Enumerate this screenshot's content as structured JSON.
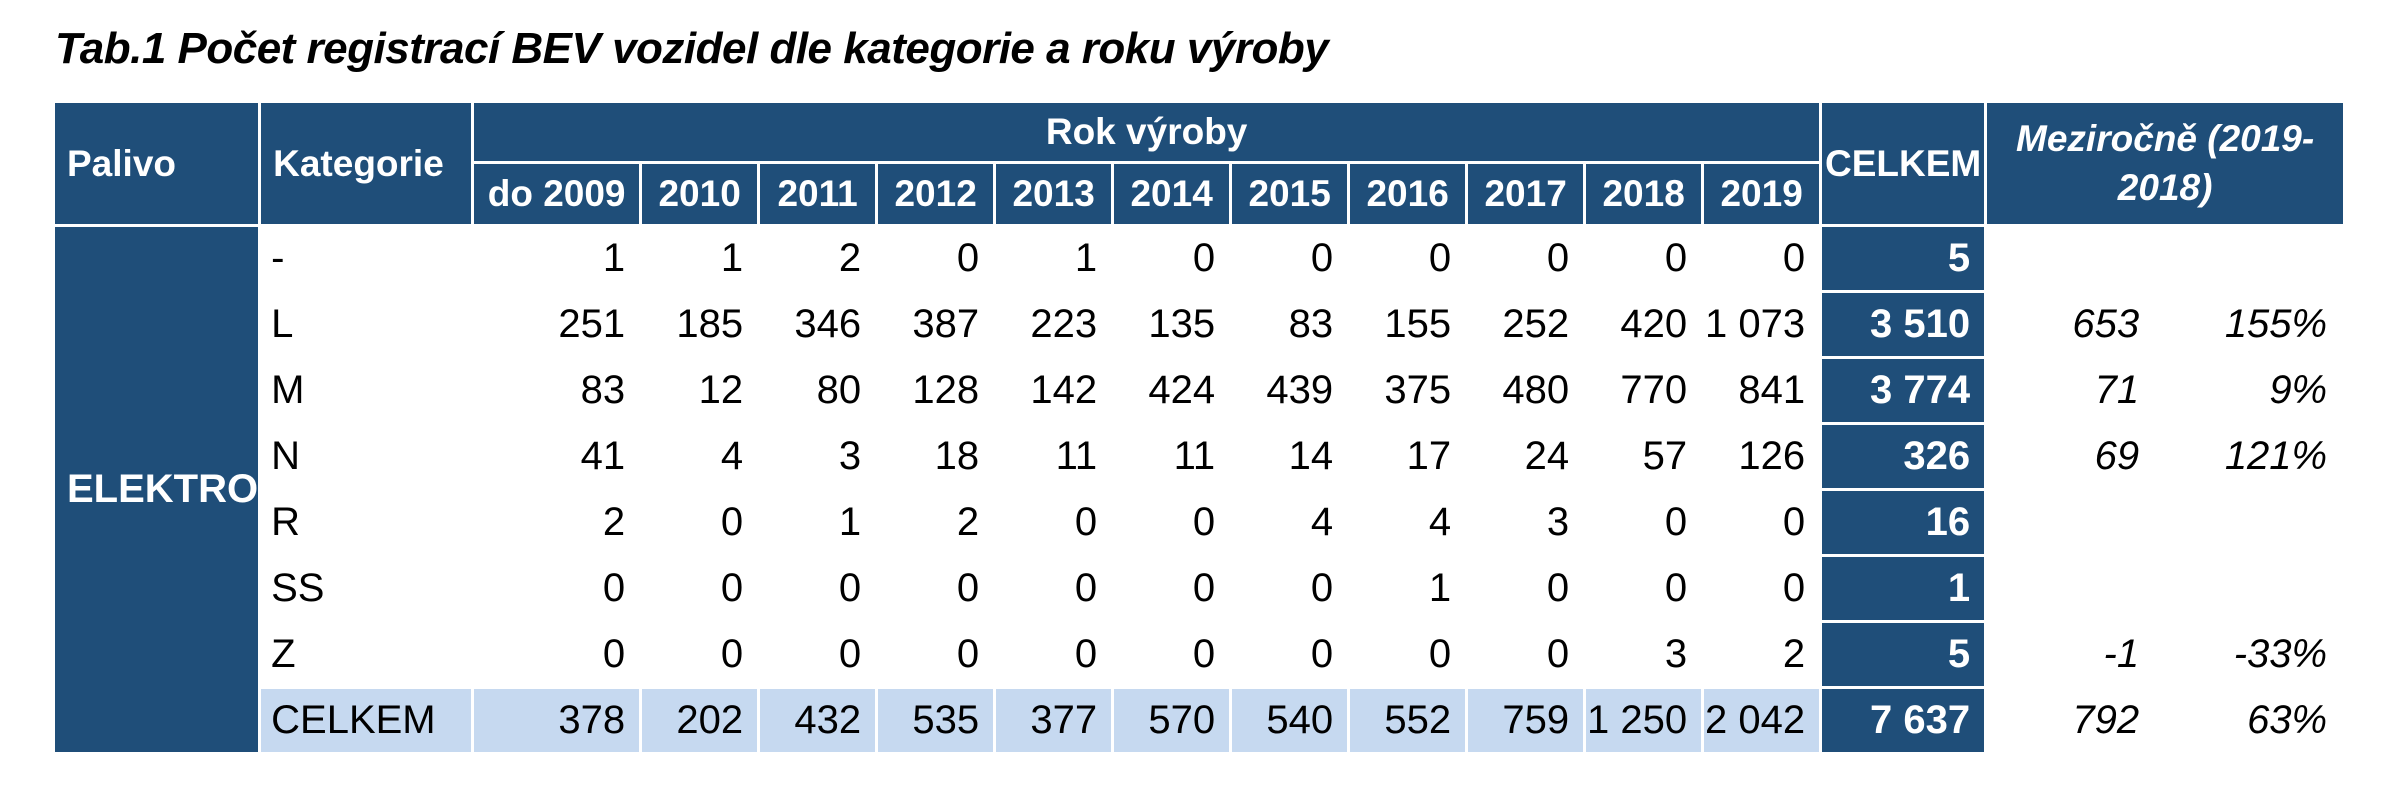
{
  "title": "Tab.1 Počet registrací BEV vozidel dle kategorie a roku výroby",
  "colors": {
    "header_dark_blue": "#1F4E79",
    "total_row_light_blue": "#C6D9F0",
    "text_black": "#000000",
    "header_text_white": "#ffffff"
  },
  "table": {
    "header": {
      "palivo": "Palivo",
      "kategorie": "Kategorie",
      "rok_vyroby": "Rok výroby",
      "years": [
        "do 2009",
        "2010",
        "2011",
        "2012",
        "2013",
        "2014",
        "2015",
        "2016",
        "2017",
        "2018",
        "2019"
      ],
      "celkem": "CELKEM",
      "mezirocne": "Meziročně (2019-2018)"
    },
    "fuel_group": "ELEKTRO",
    "rows": [
      {
        "kategorie": "-",
        "values": [
          "1",
          "1",
          "2",
          "0",
          "1",
          "0",
          "0",
          "0",
          "0",
          "0",
          "0"
        ],
        "celkem": "5",
        "yoy": "",
        "yoy_pct": ""
      },
      {
        "kategorie": "L",
        "values": [
          "251",
          "185",
          "346",
          "387",
          "223",
          "135",
          "83",
          "155",
          "252",
          "420",
          "1 073"
        ],
        "celkem": "3 510",
        "yoy": "653",
        "yoy_pct": "155%"
      },
      {
        "kategorie": "M",
        "values": [
          "83",
          "12",
          "80",
          "128",
          "142",
          "424",
          "439",
          "375",
          "480",
          "770",
          "841"
        ],
        "celkem": "3 774",
        "yoy": "71",
        "yoy_pct": "9%"
      },
      {
        "kategorie": "N",
        "values": [
          "41",
          "4",
          "3",
          "18",
          "11",
          "11",
          "14",
          "17",
          "24",
          "57",
          "126"
        ],
        "celkem": "326",
        "yoy": "69",
        "yoy_pct": "121%"
      },
      {
        "kategorie": "R",
        "values": [
          "2",
          "0",
          "1",
          "2",
          "0",
          "0",
          "4",
          "4",
          "3",
          "0",
          "0"
        ],
        "celkem": "16",
        "yoy": "",
        "yoy_pct": ""
      },
      {
        "kategorie": "SS",
        "values": [
          "0",
          "0",
          "0",
          "0",
          "0",
          "0",
          "0",
          "1",
          "0",
          "0",
          "0"
        ],
        "celkem": "1",
        "yoy": "",
        "yoy_pct": ""
      },
      {
        "kategorie": "Z",
        "values": [
          "0",
          "0",
          "0",
          "0",
          "0",
          "0",
          "0",
          "0",
          "0",
          "3",
          "2"
        ],
        "celkem": "5",
        "yoy": "-1",
        "yoy_pct": "-33%"
      }
    ],
    "total_row": {
      "kategorie": "CELKEM",
      "values": [
        "378",
        "202",
        "432",
        "535",
        "377",
        "570",
        "540",
        "552",
        "759",
        "1 250",
        "2 042"
      ],
      "celkem": "7 637",
      "yoy": "792",
      "yoy_pct": "63%"
    }
  }
}
